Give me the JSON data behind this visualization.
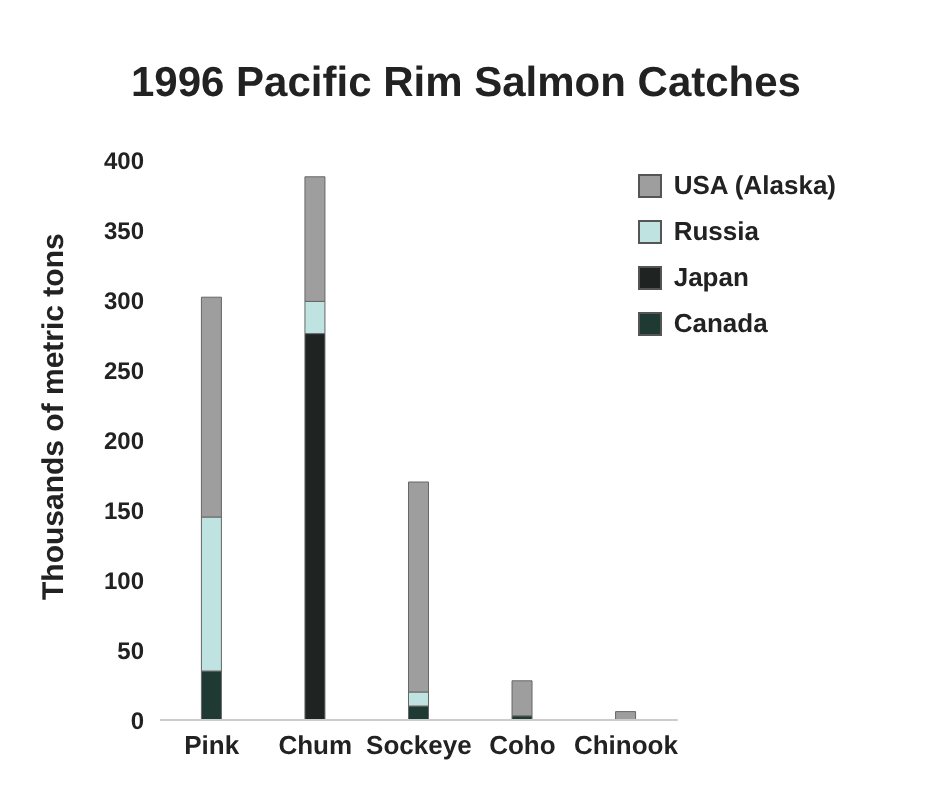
{
  "chart_data": {
    "type": "bar",
    "title": "1996 Pacific Rim Salmon Catches",
    "ylabel": "Thousands of metric tons",
    "stacked": true,
    "categories": [
      "Pink",
      "Chum",
      "Sockeye",
      "Coho",
      "Chinook"
    ],
    "series": [
      {
        "name": "Canada",
        "color": "#1f3a33",
        "values": [
          35,
          0,
          10,
          3,
          0
        ]
      },
      {
        "name": "Japan",
        "color": "#1f2422",
        "values": [
          0,
          276,
          0,
          0,
          0
        ]
      },
      {
        "name": "Russia",
        "color": "#bfe3e0",
        "values": [
          110,
          23,
          10,
          0,
          0
        ]
      },
      {
        "name": "USA (Alaska)",
        "color": "#9e9e9e",
        "values": [
          157,
          89,
          150,
          25,
          6
        ]
      }
    ],
    "ylim": [
      0,
      400
    ],
    "yticks": [
      0,
      50,
      100,
      150,
      200,
      250,
      300,
      350,
      400
    ],
    "grid": false,
    "legend": "top right"
  }
}
